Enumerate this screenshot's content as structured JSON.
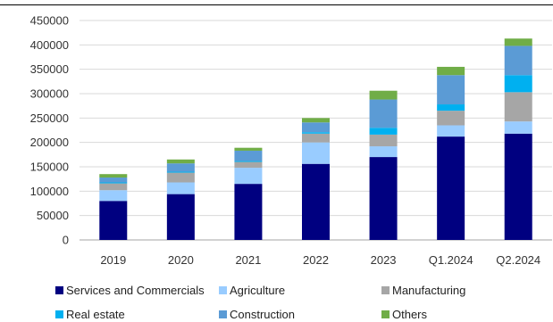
{
  "chart_data": {
    "type": "bar",
    "stacked": true,
    "title": "",
    "xlabel": "",
    "ylabel": "",
    "ylim": [
      0,
      450000
    ],
    "yticks": [
      0,
      50000,
      100000,
      150000,
      200000,
      250000,
      300000,
      350000,
      400000,
      450000
    ],
    "grid": true,
    "legend_position": "bottom",
    "categories": [
      "2019",
      "2020",
      "2021",
      "2022",
      "2023",
      "Q1.2024",
      "Q2.2024"
    ],
    "series": [
      {
        "name": "Services and Commercials",
        "color": "#000080",
        "values": [
          80000,
          94000,
          115000,
          156000,
          170000,
          212000,
          218000
        ]
      },
      {
        "name": "Agriculture",
        "color": "#99ccff",
        "values": [
          22000,
          24000,
          33000,
          44000,
          22000,
          23000,
          25000
        ]
      },
      {
        "name": "Manufacturing",
        "color": "#a6a6a6",
        "values": [
          14000,
          20000,
          12000,
          18000,
          24000,
          30000,
          60000
        ]
      },
      {
        "name": "Real estate",
        "color": "#00b0f0",
        "values": [
          2000,
          2000,
          2000,
          3000,
          14000,
          13000,
          35000
        ]
      },
      {
        "name": "Construction",
        "color": "#5b9bd5",
        "values": [
          10000,
          17000,
          21000,
          20000,
          58000,
          60000,
          60000
        ]
      },
      {
        "name": "Others",
        "color": "#70ad47",
        "values": [
          7000,
          8000,
          6000,
          9000,
          18000,
          17000,
          15000
        ]
      }
    ]
  }
}
